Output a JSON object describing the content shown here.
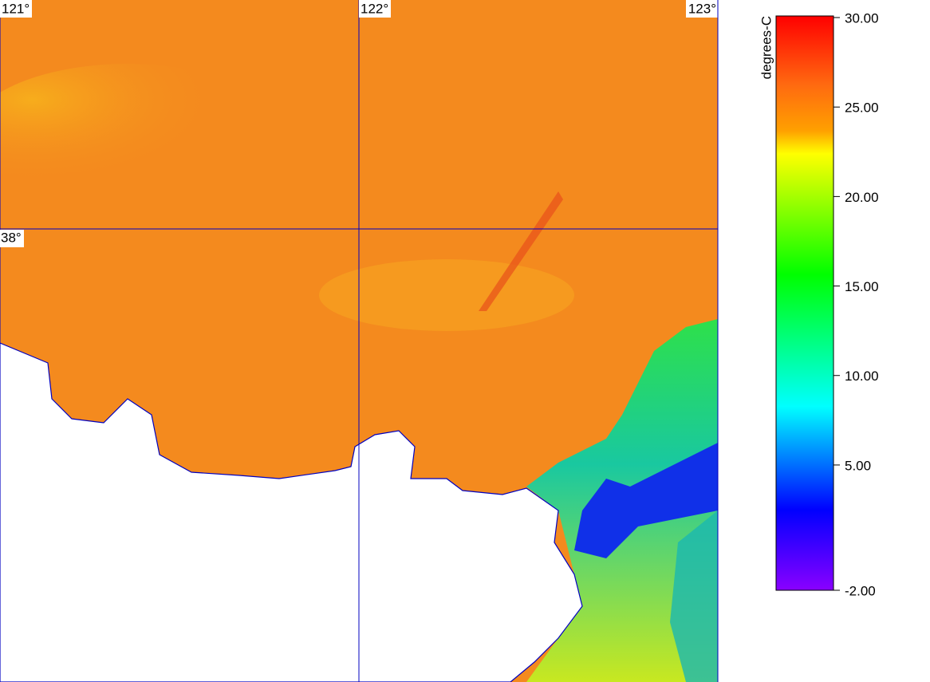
{
  "map": {
    "lon_labels": [
      {
        "value": 121,
        "label": "121°"
      },
      {
        "value": 122,
        "label": "122°"
      },
      {
        "value": 123,
        "label": "123°"
      }
    ],
    "lat_labels": [
      {
        "value": 38,
        "label": "38°"
      }
    ]
  },
  "colorbar": {
    "title": "degrees-C",
    "ticks": [
      {
        "value": 30,
        "label": "30.00"
      },
      {
        "value": 25,
        "label": "25.00"
      },
      {
        "value": 20,
        "label": "20.00"
      },
      {
        "value": 15,
        "label": "15.00"
      },
      {
        "value": 10,
        "label": "10.00"
      },
      {
        "value": 5,
        "label": "5.00"
      },
      {
        "value": -2,
        "label": "-2.00"
      }
    ]
  }
}
